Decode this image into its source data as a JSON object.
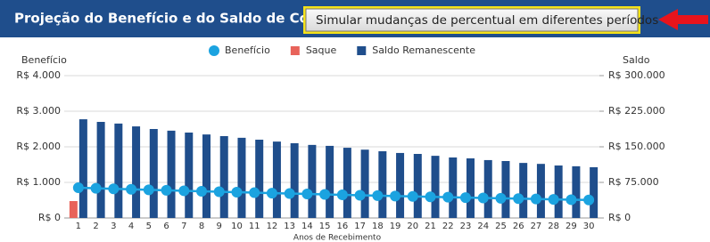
{
  "header": {
    "title": "Projeção do Benefício e do Saldo de Conta",
    "button": "Simular mudanças de percentual em diferentes períodos"
  },
  "chart_data": {
    "type": "bar-line",
    "y_label": "Benefício",
    "y2_label": "Saldo",
    "x_label": "Anos de Recebimento",
    "categories": [
      "1",
      "2",
      "3",
      "4",
      "5",
      "6",
      "7",
      "8",
      "9",
      "10",
      "11",
      "12",
      "13",
      "14",
      "15",
      "16",
      "17",
      "18",
      "19",
      "20",
      "21",
      "22",
      "23",
      "24",
      "25",
      "26",
      "27",
      "28",
      "29",
      "30"
    ],
    "series": [
      {
        "name": "Benefício",
        "color": "#1ba3e0",
        "kind": "line",
        "values": [
          850,
          835,
          820,
          806,
          792,
          778,
          764,
          750,
          737,
          724,
          711,
          698,
          686,
          674,
          662,
          650,
          638,
          627,
          616,
          605,
          594,
          583,
          573,
          563,
          553,
          543,
          533,
          523,
          514,
          505
        ]
      },
      {
        "name": "Saque",
        "color": "#e8635a",
        "kind": "bar",
        "values": [
          475,
          null,
          null,
          null,
          null,
          null,
          null,
          null,
          null,
          null,
          null,
          null,
          null,
          null,
          null,
          null,
          null,
          null,
          null,
          null,
          null,
          null,
          null,
          null,
          null,
          null,
          null,
          null,
          null,
          null
        ]
      },
      {
        "name": "Saldo Remanescente",
        "color": "#1f4e8c",
        "kind": "bar",
        "axis": "y2",
        "values": [
          208000,
          202500,
          199000,
          193000,
          187500,
          184000,
          180000,
          176000,
          172500,
          169000,
          165000,
          161000,
          157500,
          154000,
          152000,
          148000,
          144000,
          140600,
          137000,
          135000,
          131000,
          127500,
          125600,
          122000,
          120000,
          116000,
          114000,
          110600,
          109000,
          107000
        ]
      }
    ],
    "ylim": [
      0,
      4000
    ],
    "yticks": [
      {
        "value": 0,
        "label": "R$ 0"
      },
      {
        "value": 1000,
        "label": "R$ 1.000"
      },
      {
        "value": 2000,
        "label": "R$ 2.000"
      },
      {
        "value": 3000,
        "label": "R$ 3.000"
      },
      {
        "value": 4000,
        "label": "R$ 4.000"
      }
    ],
    "y2lim": [
      0,
      300000
    ],
    "y2ticks": [
      {
        "value": 0,
        "label": "R$ 0"
      },
      {
        "value": 75000,
        "label": "R$ 75.000"
      },
      {
        "value": 150000,
        "label": "R$ 150.000"
      },
      {
        "value": 225000,
        "label": "R$ 225.000"
      },
      {
        "value": 300000,
        "label": "R$ 300.000"
      }
    ],
    "grid": true
  }
}
